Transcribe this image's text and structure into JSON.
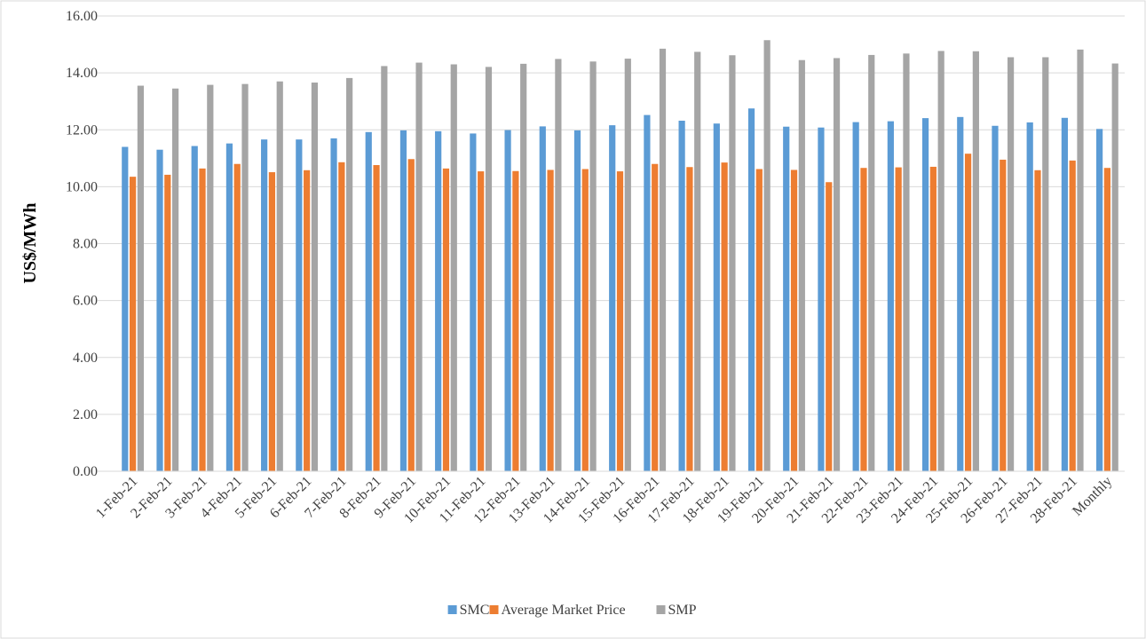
{
  "chart_data": {
    "type": "bar",
    "y_label": "US$/MWh",
    "categories": [
      "1-Feb-21",
      "2-Feb-21",
      "3-Feb-21",
      "4-Feb-21",
      "5-Feb-21",
      "6-Feb-21",
      "7-Feb-21",
      "8-Feb-21",
      "9-Feb-21",
      "10-Feb-21",
      "11-Feb-21",
      "12-Feb-21",
      "13-Feb-21",
      "14-Feb-21",
      "15-Feb-21",
      "16-Feb-21",
      "17-Feb-21",
      "18-Feb-21",
      "19-Feb-21",
      "20-Feb-21",
      "21-Feb-21",
      "22-Feb-21",
      "23-Feb-21",
      "24-Feb-21",
      "25-Feb-21",
      "26-Feb-21",
      "27-Feb-21",
      "28-Feb-21",
      "Monthly"
    ],
    "series": [
      {
        "name": "SMC",
        "color": "#5b9bd5",
        "values": [
          11.4,
          11.3,
          11.43,
          11.52,
          11.66,
          11.66,
          11.7,
          11.92,
          11.98,
          11.95,
          11.87,
          11.99,
          12.12,
          11.98,
          12.16,
          12.52,
          12.32,
          12.22,
          12.75,
          12.11,
          12.08,
          12.27,
          12.3,
          12.41,
          12.45,
          12.14,
          12.26,
          12.42,
          12.03
        ]
      },
      {
        "name": "Average Market Price",
        "color": "#ed7d31",
        "values": [
          10.35,
          10.42,
          10.64,
          10.8,
          10.51,
          10.58,
          10.86,
          10.76,
          10.97,
          10.64,
          10.54,
          10.55,
          10.59,
          10.62,
          10.54,
          10.8,
          10.69,
          10.85,
          10.62,
          10.59,
          10.16,
          10.66,
          10.68,
          10.7,
          11.16,
          10.95,
          10.58,
          10.92,
          10.66
        ]
      },
      {
        "name": "SMP",
        "color": "#a5a5a5",
        "values": [
          13.55,
          13.45,
          13.58,
          13.61,
          13.7,
          13.66,
          13.82,
          14.24,
          14.36,
          14.3,
          14.21,
          14.32,
          14.49,
          14.4,
          14.5,
          14.85,
          14.74,
          14.62,
          15.15,
          14.45,
          14.52,
          14.63,
          14.68,
          14.77,
          14.76,
          14.55,
          14.55,
          14.82,
          14.33
        ]
      }
    ],
    "ylim": [
      0,
      16
    ],
    "yticks": [
      {
        "value": 0,
        "label": "0.00"
      },
      {
        "value": 2,
        "label": "2.00"
      },
      {
        "value": 4,
        "label": "4.00"
      },
      {
        "value": 6,
        "label": "6.00"
      },
      {
        "value": 8,
        "label": "8.00"
      },
      {
        "value": 10,
        "label": "10.00"
      },
      {
        "value": 12,
        "label": "12.00"
      },
      {
        "value": 14,
        "label": "14.00"
      },
      {
        "value": 16,
        "label": "16.00"
      }
    ],
    "grid": true,
    "legend": "bottom"
  }
}
